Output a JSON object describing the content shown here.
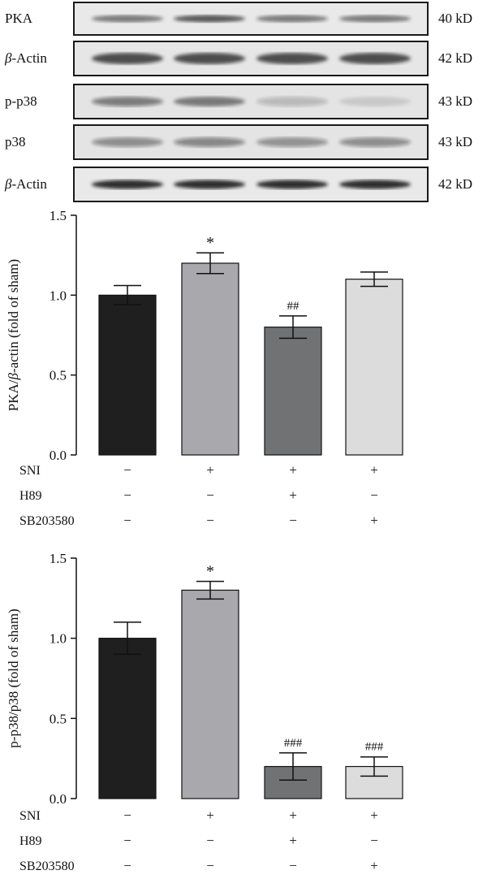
{
  "blots": [
    {
      "label_prefix": "",
      "label_greek": "",
      "label_rest": "PKA",
      "kd": "40 kD",
      "top": 2,
      "height": 42,
      "bg": "#e9e9e9",
      "bands": [
        0.55,
        0.7,
        0.55,
        0.55
      ],
      "bandThickness": 9
    },
    {
      "label_prefix": "",
      "label_greek": "β",
      "label_rest": "-Actin",
      "kd": "42 kD",
      "top": 50,
      "height": 44,
      "bg": "#e6e6e6",
      "bands": [
        0.75,
        0.75,
        0.75,
        0.75
      ],
      "bandThickness": 14
    },
    {
      "label_prefix": "",
      "label_greek": "",
      "label_rest": "p-p38",
      "kd": "43 kD",
      "top": 103,
      "height": 44,
      "bg": "#e4e4e4",
      "bands": [
        0.5,
        0.55,
        0.22,
        0.12
      ],
      "bandThickness": 12
    },
    {
      "label_prefix": "",
      "label_greek": "",
      "label_rest": "p38",
      "kd": "43 kD",
      "top": 153,
      "height": 44,
      "bg": "#e4e4e4",
      "bands": [
        0.42,
        0.45,
        0.4,
        0.42
      ],
      "bandThickness": 12
    },
    {
      "label_prefix": "",
      "label_greek": "β",
      "label_rest": "-Actin",
      "kd": "42 kD",
      "top": 205,
      "height": 44,
      "bg": "#e9e9e9",
      "bands": [
        0.92,
        0.92,
        0.92,
        0.92
      ],
      "bandThickness": 11
    }
  ],
  "chart_data": [
    {
      "type": "bar",
      "ylabel_prefix": "PKA/",
      "ylabel_greek": "β",
      "ylabel_rest": "-actin (fold of sham)",
      "ylim": [
        0,
        1.5
      ],
      "yticks": [
        "0.0",
        "0.5",
        "1.0",
        "1.5"
      ],
      "yvalues": [
        0,
        0.5,
        1.0,
        1.5
      ],
      "values": [
        1.0,
        1.2,
        0.8,
        1.1
      ],
      "errors": [
        0.06,
        0.065,
        0.07,
        0.045
      ],
      "annotations": [
        "",
        "*",
        "##",
        ""
      ],
      "colors": [
        "#1f1f1f",
        "#a9a9ad",
        "#707274",
        "#dcdcdc"
      ],
      "treatments": [
        {
          "name": "SNI",
          "signs": [
            "−",
            "+",
            "+",
            "+"
          ]
        },
        {
          "name": "H89",
          "signs": [
            "−",
            "−",
            "+",
            "−"
          ]
        },
        {
          "name": "SB203580",
          "signs": [
            "−",
            "−",
            "−",
            "+"
          ]
        }
      ]
    },
    {
      "type": "bar",
      "ylabel_prefix": "",
      "ylabel_greek": "",
      "ylabel_rest": "p-p38/p38 (fold of  sham)",
      "ylim": [
        0,
        1.5
      ],
      "yticks": [
        "0.0",
        "0.5",
        "1.0",
        "1.5"
      ],
      "yvalues": [
        0,
        0.5,
        1.0,
        1.5
      ],
      "values": [
        1.0,
        1.3,
        0.2,
        0.2
      ],
      "errors": [
        0.1,
        0.055,
        0.085,
        0.06
      ],
      "annotations": [
        "",
        "*",
        "###",
        "###"
      ],
      "colors": [
        "#1f1f1f",
        "#a9a9ad",
        "#707274",
        "#dcdcdc"
      ],
      "treatments": [
        {
          "name": "SNI",
          "signs": [
            "−",
            "+",
            "+",
            "+"
          ]
        },
        {
          "name": "H89",
          "signs": [
            "−",
            "−",
            "+",
            "−"
          ]
        },
        {
          "name": "SB203580",
          "signs": [
            "−",
            "−",
            "−",
            "+"
          ]
        }
      ]
    }
  ]
}
